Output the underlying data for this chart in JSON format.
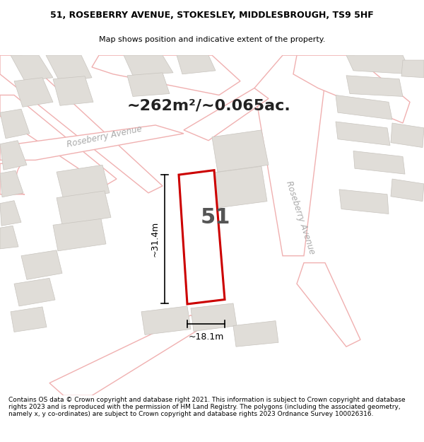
{
  "title_line1": "51, ROSEBERRY AVENUE, STOKESLEY, MIDDLESBROUGH, TS9 5HF",
  "title_line2": "Map shows position and indicative extent of the property.",
  "area_text": "~262m²/~0.065ac.",
  "number_label": "51",
  "dim_width": "~18.1m",
  "dim_height": "~31.4m",
  "street_label1": "Roseberry Avenue",
  "street_label2": "Roseberry Avenue",
  "footer_text": "Contains OS data © Crown copyright and database right 2021. This information is subject to Crown copyright and database rights 2023 and is reproduced with the permission of HM Land Registry. The polygons (including the associated geometry, namely x, y co-ordinates) are subject to Crown copyright and database rights 2023 Ordnance Survey 100026316.",
  "map_bg": "#f9f7f5",
  "plot_color": "#cc0000",
  "road_outline_color": "#f0b0b0",
  "building_color": "#e0ddd8",
  "building_edge": "#c8c4be",
  "title_fontsize": 9,
  "subtitle_fontsize": 8,
  "footer_fontsize": 6.5,
  "area_fontsize": 16,
  "number_fontsize": 22
}
